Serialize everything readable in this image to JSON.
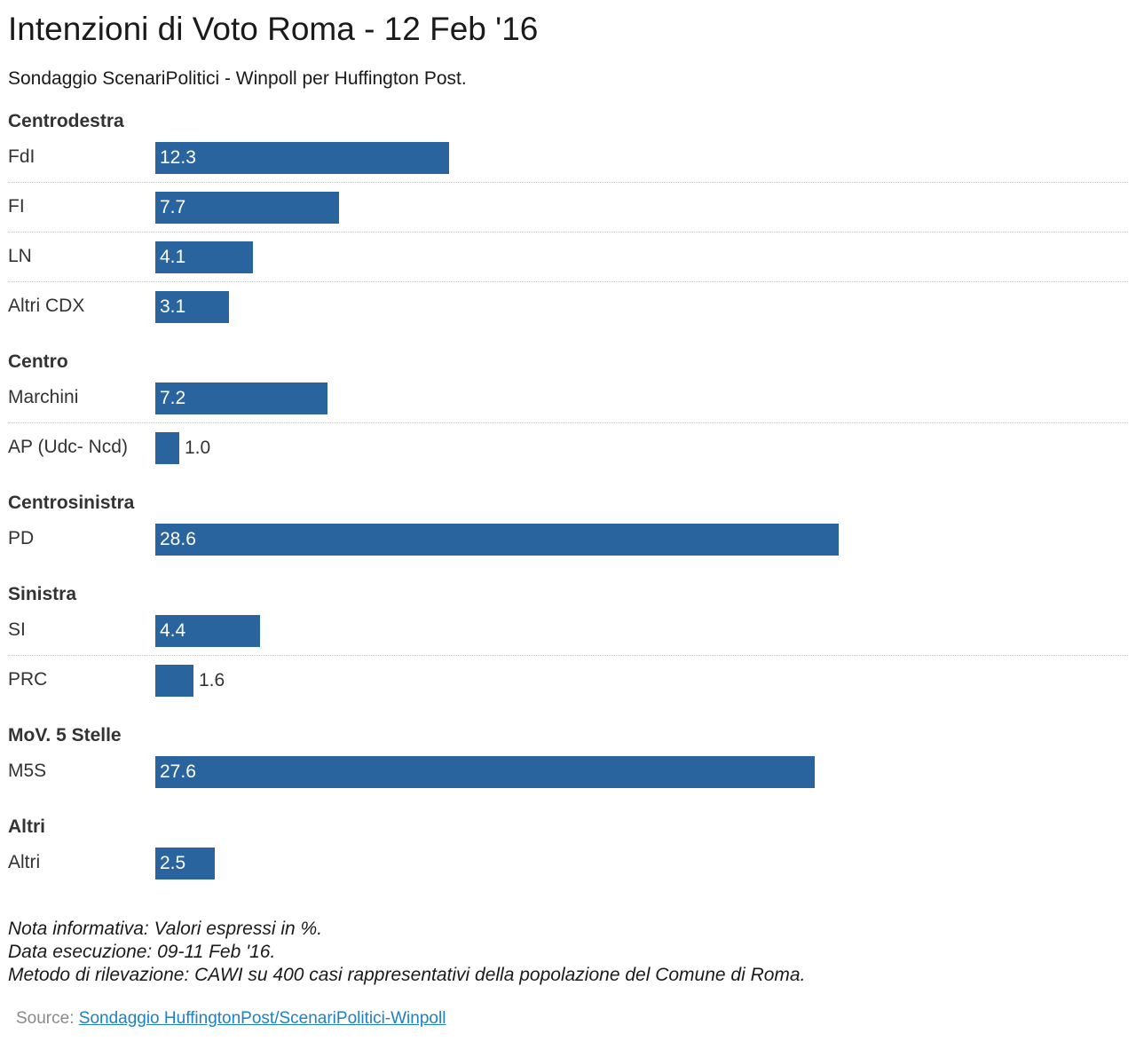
{
  "title": "Intenzioni di Voto Roma - 12 Feb '16",
  "subtitle": "Sondaggio ScenariPolitici - Winpoll per Huffington Post.",
  "colors": {
    "bar": "#2a649f",
    "link": "#1d82c4"
  },
  "chart_data": {
    "type": "bar",
    "orientation": "horizontal",
    "groups": [
      {
        "name": "Centrodestra",
        "items": [
          {
            "label": "FdI",
            "value": 12.3
          },
          {
            "label": "FI",
            "value": 7.7
          },
          {
            "label": "LN",
            "value": 4.1
          },
          {
            "label": "Altri CDX",
            "value": 3.1
          }
        ]
      },
      {
        "name": "Centro",
        "items": [
          {
            "label": "Marchini",
            "value": 7.2
          },
          {
            "label": "AP (Udc- Ncd)",
            "value": 1.0
          }
        ]
      },
      {
        "name": "Centrosinistra",
        "items": [
          {
            "label": "PD",
            "value": 28.6
          }
        ]
      },
      {
        "name": "Sinistra",
        "items": [
          {
            "label": "SI",
            "value": 4.4
          },
          {
            "label": "PRC",
            "value": 1.6
          }
        ]
      },
      {
        "name": "MoV. 5 Stelle",
        "items": [
          {
            "label": "M5S",
            "value": 27.6
          }
        ]
      },
      {
        "name": "Altri",
        "items": [
          {
            "label": "Altri",
            "value": 2.5
          }
        ]
      }
    ],
    "xlim": [
      0,
      28.6
    ]
  },
  "notes": [
    "Nota informativa: Valori espressi in %.",
    "Data esecuzione: 09-11 Feb '16.",
    "Metodo di rilevazione: CAWI su 400 casi rappresentativi della popolazione del Comune di Roma."
  ],
  "source": {
    "prefix": "Source: ",
    "link_text": "Sondaggio HuffingtonPost/ScenariPolitici-Winpoll"
  }
}
